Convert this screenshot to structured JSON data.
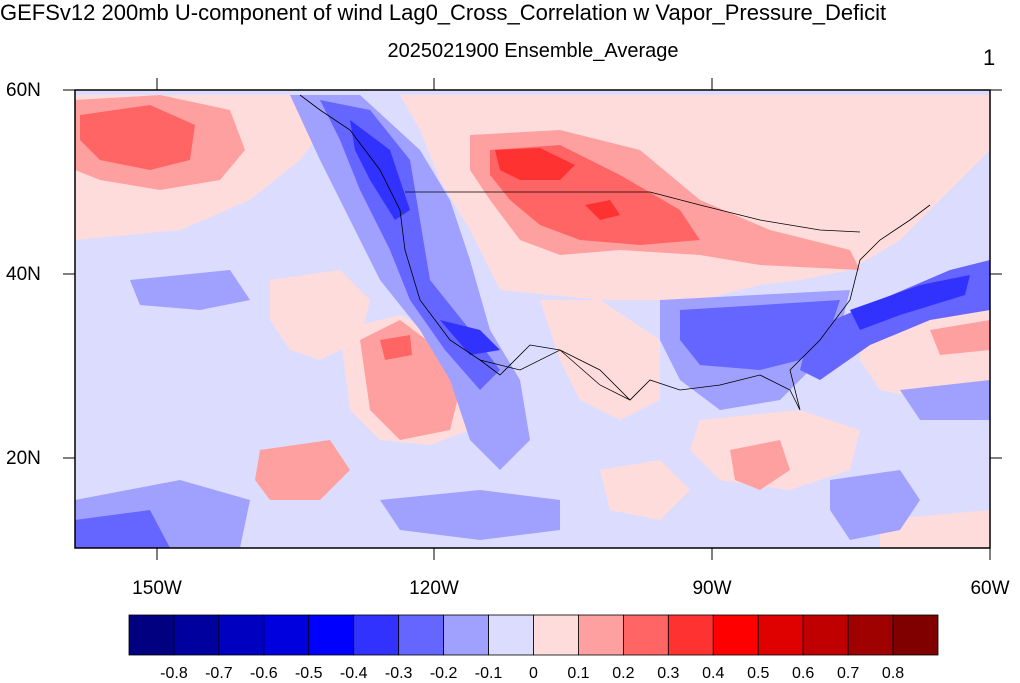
{
  "title": "GEFSv12 200mb U-component of wind Lag0_Cross_Correlation w Vapor_Pressure_Deficit",
  "subtitle": "2025021900 Ensemble_Average",
  "panel_number": "1",
  "lat_labels": [
    "60N",
    "40N",
    "20N"
  ],
  "lon_labels": [
    "150W",
    "120W",
    "90W",
    "60W"
  ],
  "colorbar": {
    "labels": [
      "-0.8",
      "-0.7",
      "-0.6",
      "-0.5",
      "-0.4",
      "-0.3",
      "-0.2",
      "-0.1",
      "0",
      "0.1",
      "0.2",
      "0.3",
      "0.4",
      "0.5",
      "0.6",
      "0.7",
      "0.8"
    ],
    "colors": [
      "#000080",
      "#00009f",
      "#0000c0",
      "#0000df",
      "#0000ff",
      "#3232ff",
      "#6565ff",
      "#a0a0ff",
      "#dcdcff",
      "#ffdcdc",
      "#ffa0a0",
      "#ff6565",
      "#ff3232",
      "#ff0000",
      "#df0000",
      "#c00000",
      "#9f0000",
      "#800000"
    ]
  }
}
